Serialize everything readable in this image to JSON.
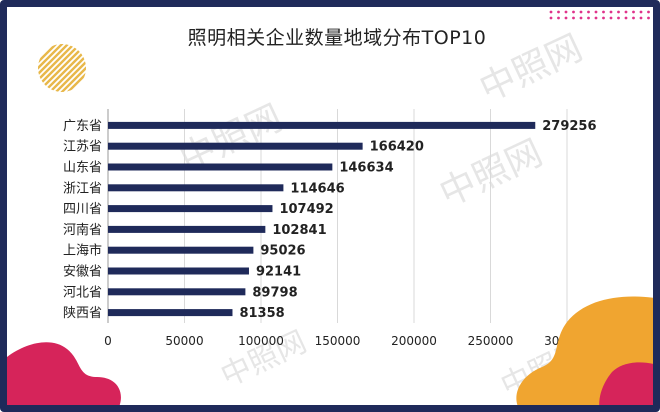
{
  "title": "照明相关企业数量地域分布TOP10",
  "watermark": "中照网",
  "colors": {
    "bar": "#1f2a5a",
    "frame": "#1f2a5a",
    "grid": "#d9d9d9",
    "stripes": "#e8b84a",
    "blob_red": "#d6245a",
    "blob_orange": "#f0a530",
    "dots": "#e0338a"
  },
  "chart_data": {
    "type": "bar",
    "orientation": "horizontal",
    "title": "照明相关企业数量地域分布TOP10",
    "categories": [
      "广东省",
      "江苏省",
      "山东省",
      "浙江省",
      "四川省",
      "河南省",
      "上海市",
      "安徽省",
      "河北省",
      "陕西省"
    ],
    "values": [
      279256,
      166420,
      146634,
      114646,
      107492,
      102841,
      95026,
      92141,
      89798,
      81358
    ],
    "xlim": [
      0,
      300000
    ],
    "xticks": [
      0,
      50000,
      100000,
      150000,
      200000,
      250000,
      300000
    ],
    "grid": "vertical",
    "data_labels": true
  }
}
